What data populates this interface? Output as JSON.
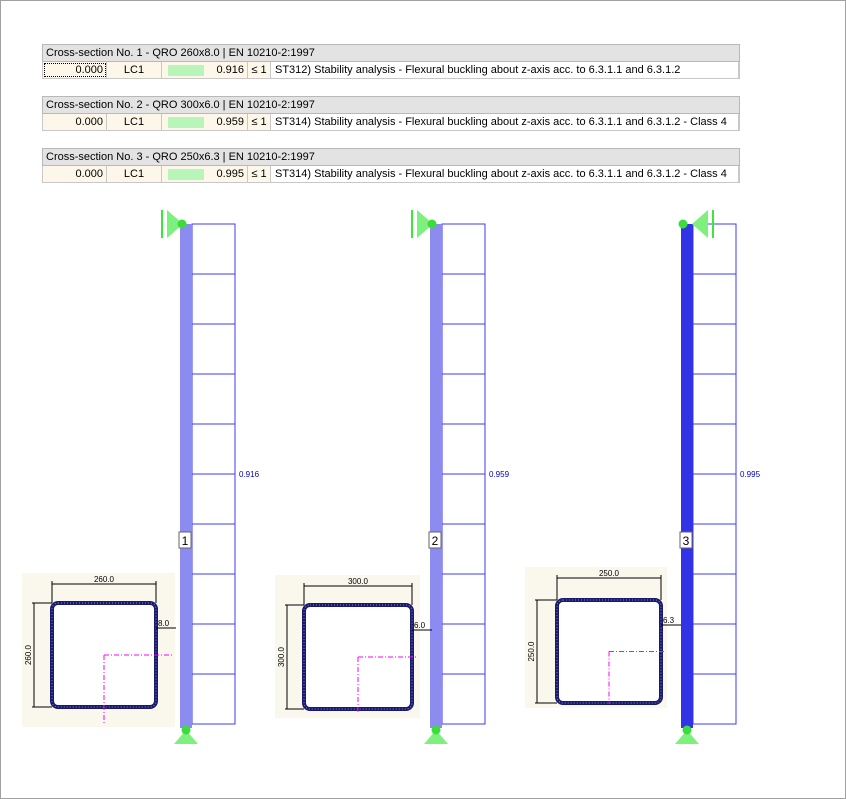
{
  "sections": [
    {
      "header": "Cross-section No.  1 - QRO 260x8.0 | EN 10210-2:1997",
      "location": "0.000",
      "lc": "LC1",
      "ratio": "0.916",
      "limit": "≤ 1",
      "description": "ST312) Stability analysis - Flexural buckling about z-axis acc. to 6.3.1.1 and 6.3.1.2",
      "member": "1",
      "dim_b": "260.0",
      "dim_h": "260.0",
      "dim_t": "8.0",
      "bar_color": "#8c8cf0"
    },
    {
      "header": "Cross-section No.  2 - QRO 300x6.0 | EN 10210-2:1997",
      "location": "0.000",
      "lc": "LC1",
      "ratio": "0.959",
      "limit": "≤ 1",
      "description": "ST314) Stability analysis - Flexural buckling about z-axis acc. to 6.3.1.1 and 6.3.1.2 - Class 4",
      "member": "2",
      "dim_b": "300.0",
      "dim_h": "300.0",
      "dim_t": "6.0",
      "bar_color": "#8c8cf0"
    },
    {
      "header": "Cross-section No.  3 - QRO 250x6.3 | EN 10210-2:1997",
      "location": "0.000",
      "lc": "LC1",
      "ratio": "0.995",
      "limit": "≤ 1",
      "description": "ST314) Stability analysis - Flexural buckling about z-axis acc. to 6.3.1.1 and 6.3.1.2 - Class 4",
      "member": "3",
      "dim_b": "250.0",
      "dim_h": "250.0",
      "dim_t": "6.3",
      "bar_color": "#3232e6"
    }
  ],
  "colors": {
    "diagram": "#3c3cf0",
    "support": "#5ce65c",
    "axis": "#ff00ff",
    "ratio_bar": "#b8f5b8"
  }
}
